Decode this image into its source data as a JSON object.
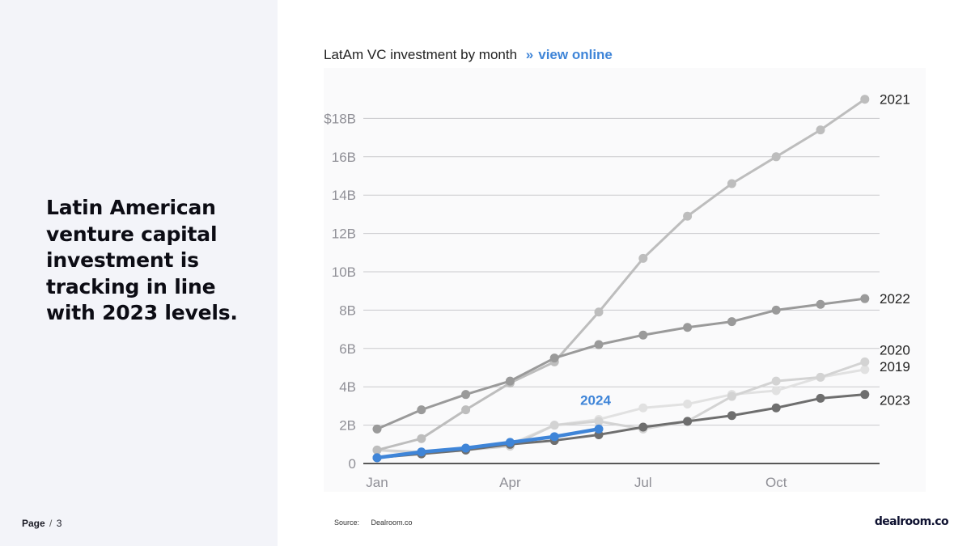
{
  "headline": "Latin American venture capital investment is tracking in line with 2023 levels.",
  "page": {
    "label": "Page",
    "separator": "/",
    "number": "3"
  },
  "chart_header": {
    "title": "LatAm VC investment by month",
    "link_chevron": "»",
    "link_text": "view online"
  },
  "source": {
    "label": "Source:",
    "value": "Dealroom.co"
  },
  "logo_text": "dealroom.co",
  "colors": {
    "accent": "#3f85d8",
    "series_2021": "#bdbdbd",
    "series_2022": "#9a9a9a",
    "series_2020": "#d3d3d3",
    "series_2019": "#e1e1e1",
    "series_2023": "#6e6e6e"
  },
  "chart_data": {
    "type": "line",
    "title": "LatAm VC investment by month",
    "xlabel": "",
    "ylabel": "",
    "x_ticks": [
      "Jan",
      "Apr",
      "Jul",
      "Oct"
    ],
    "y_ticks": [
      "0",
      "2B",
      "4B",
      "6B",
      "8B",
      "10B",
      "12B",
      "14B",
      "16B",
      "$18B"
    ],
    "ylim": [
      0,
      18
    ],
    "grid": true,
    "months": [
      1,
      2,
      3,
      4,
      5,
      6,
      7,
      8,
      9,
      10,
      11,
      12
    ],
    "series": [
      {
        "name": "2021",
        "values": [
          0.7,
          1.3,
          2.8,
          4.2,
          5.3,
          7.9,
          10.7,
          12.9,
          14.6,
          16.0,
          17.4,
          19.0
        ]
      },
      {
        "name": "2022",
        "values": [
          1.8,
          2.8,
          3.6,
          4.3,
          5.5,
          6.2,
          6.7,
          7.1,
          7.4,
          8.0,
          8.3,
          8.6
        ]
      },
      {
        "name": "2020",
        "values": [
          0.7,
          0.6,
          0.7,
          0.9,
          2.0,
          2.2,
          1.8,
          2.2,
          3.5,
          4.3,
          4.5,
          5.3
        ]
      },
      {
        "name": "2019",
        "values": [
          0.7,
          0.5,
          0.7,
          1.0,
          2.0,
          2.3,
          2.9,
          3.1,
          3.6,
          3.8,
          4.5,
          4.9
        ]
      },
      {
        "name": "2023",
        "values": [
          0.3,
          0.5,
          0.7,
          1.0,
          1.2,
          1.5,
          1.9,
          2.2,
          2.5,
          2.9,
          3.4,
          3.6
        ]
      },
      {
        "name": "2024",
        "values": [
          0.3,
          0.6,
          0.8,
          1.1,
          1.4,
          1.8
        ]
      }
    ]
  }
}
